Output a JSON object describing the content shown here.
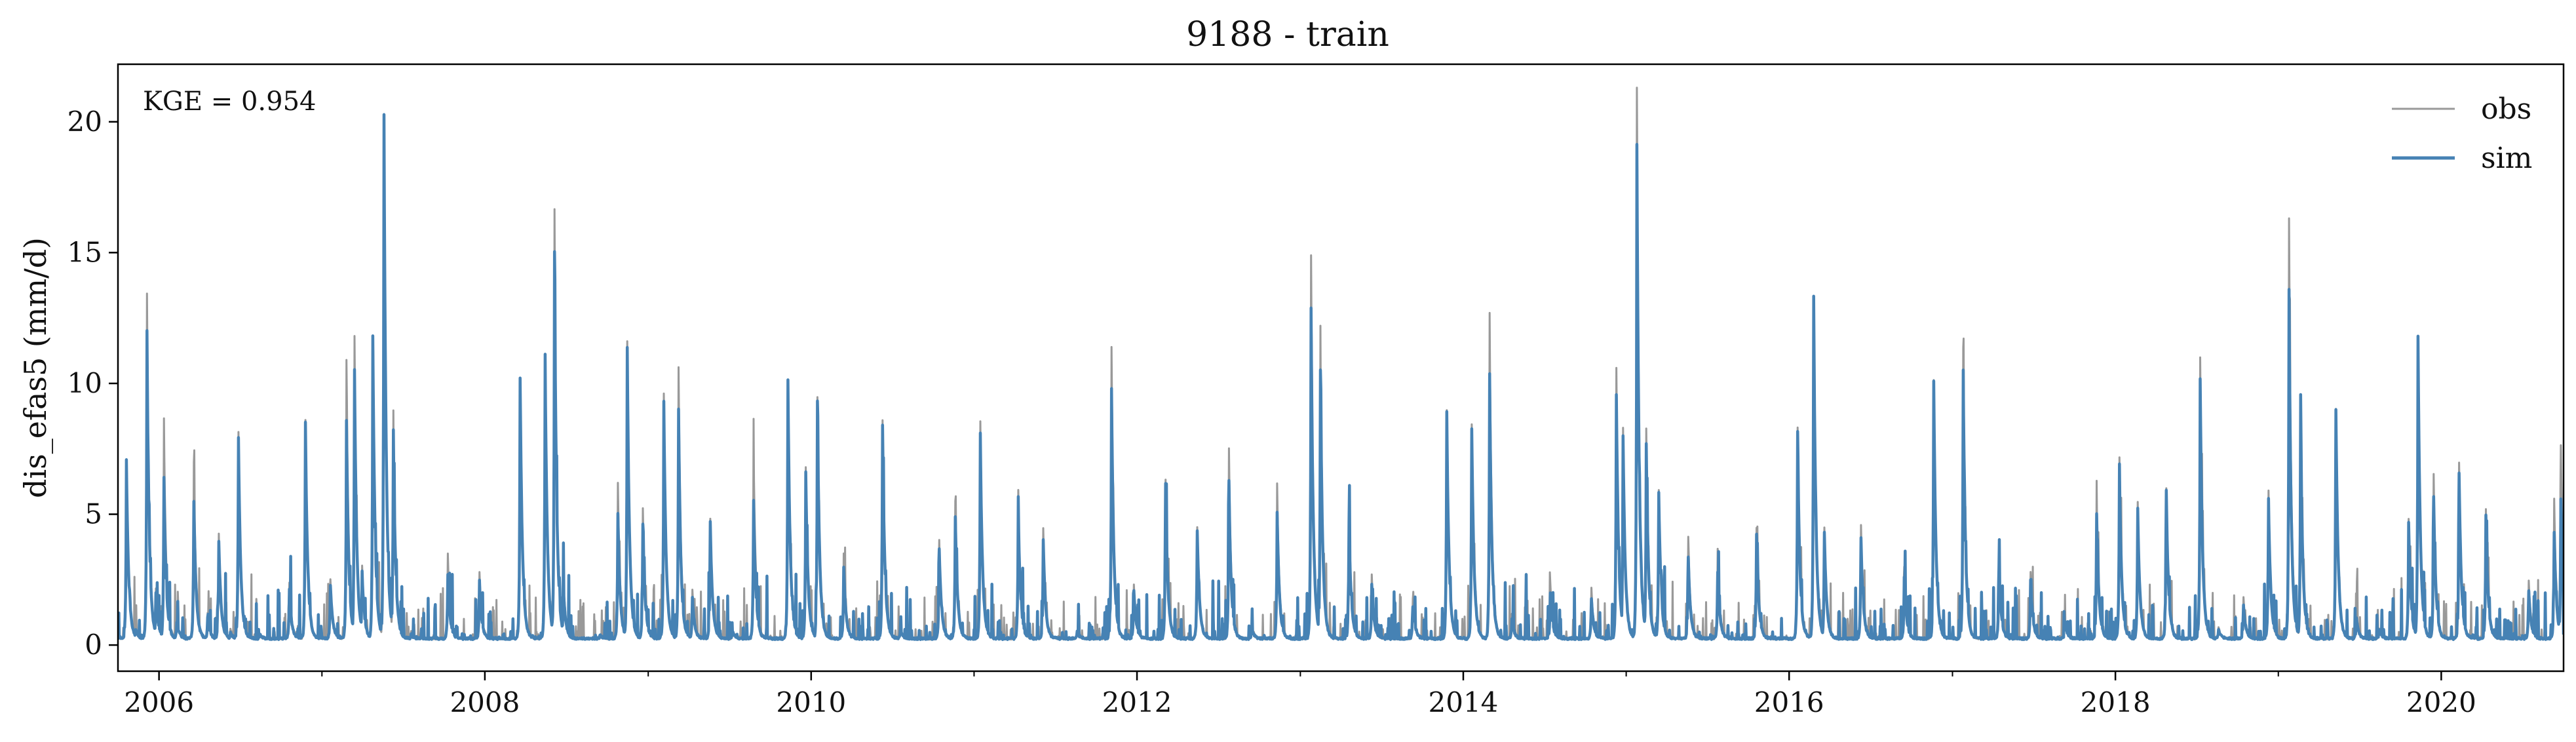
{
  "chart_data": {
    "type": "line",
    "title": "9188 - train",
    "xlabel": "",
    "ylabel": "dis_efas5 (mm/d)",
    "xlim": [
      "2005-10-01",
      "2020-10-01"
    ],
    "ylim": [
      -1,
      22.2
    ],
    "x_ticks": [
      "2006",
      "2008",
      "2010",
      "2012",
      "2014",
      "2016",
      "2018",
      "2020"
    ],
    "y_ticks": [
      "0",
      "5",
      "10",
      "15",
      "20"
    ],
    "grid": false,
    "legend": {
      "position": "top-right"
    },
    "annotation": "KGE = 0.954",
    "colors": {
      "obs": "#999999",
      "sim": "#4682b4"
    },
    "series": [
      {
        "name": "obs",
        "values": [
          [
            "2005-10-01",
            0.3
          ],
          [
            "2005-10-20",
            7.0
          ],
          [
            "2005-11-10",
            0.6
          ],
          [
            "2005-12-05",
            13.4
          ],
          [
            "2005-12-25",
            2.2
          ],
          [
            "2006-01-12",
            8.7
          ],
          [
            "2006-02-10",
            1.0
          ],
          [
            "2006-03-20",
            7.0
          ],
          [
            "2006-04-20",
            1.2
          ],
          [
            "2006-05-15",
            4.2
          ],
          [
            "2006-06-10",
            0.6
          ],
          [
            "2006-06-28",
            8.0
          ],
          [
            "2006-08-15",
            0.4
          ],
          [
            "2006-10-20",
            2.4
          ],
          [
            "2006-11-25",
            8.6
          ],
          [
            "2007-01-20",
            2.5
          ],
          [
            "2007-02-25",
            10.9
          ],
          [
            "2007-03-15",
            11.8
          ],
          [
            "2007-04-01",
            3.0
          ],
          [
            "2007-04-25",
            11.8
          ],
          [
            "2007-05-20",
            20.3
          ],
          [
            "2007-06-10",
            8.3
          ],
          [
            "2007-07-20",
            0.5
          ],
          [
            "2007-10-10",
            3.5
          ],
          [
            "2007-12-20",
            2.8
          ],
          [
            "2008-03-20",
            10.2
          ],
          [
            "2008-05-15",
            11.1
          ],
          [
            "2008-06-05",
            16.7
          ],
          [
            "2008-06-25",
            2.6
          ],
          [
            "2008-09-15",
            0.4
          ],
          [
            "2008-10-25",
            6.2
          ],
          [
            "2008-11-15",
            11.6
          ],
          [
            "2008-12-20",
            5.2
          ],
          [
            "2009-02-05",
            9.6
          ],
          [
            "2009-03-10",
            10.6
          ],
          [
            "2009-04-10",
            2.1
          ],
          [
            "2009-05-20",
            4.8
          ],
          [
            "2009-07-10",
            0.5
          ],
          [
            "2009-08-25",
            7.6
          ],
          [
            "2009-11-10",
            10.1
          ],
          [
            "2009-12-20",
            6.8
          ],
          [
            "2010-01-15",
            9.5
          ],
          [
            "2010-03-15",
            3.5
          ],
          [
            "2010-06-10",
            8.6
          ],
          [
            "2010-07-20",
            0.6
          ],
          [
            "2010-10-15",
            4.0
          ],
          [
            "2010-11-20",
            5.5
          ],
          [
            "2011-01-15",
            7.9
          ],
          [
            "2011-04-10",
            5.4
          ],
          [
            "2011-06-05",
            4.5
          ],
          [
            "2011-08-20",
            0.5
          ],
          [
            "2011-11-05",
            11.4
          ],
          [
            "2011-12-25",
            2.3
          ],
          [
            "2012-03-05",
            6.3
          ],
          [
            "2012-05-15",
            4.5
          ],
          [
            "2012-07-25",
            7.5
          ],
          [
            "2012-09-15",
            0.6
          ],
          [
            "2012-11-10",
            6.2
          ],
          [
            "2013-01-25",
            14.9
          ],
          [
            "2013-02-15",
            10.6
          ],
          [
            "2013-04-20",
            5.5
          ],
          [
            "2013-06-10",
            2.7
          ],
          [
            "2013-09-10",
            1.8
          ],
          [
            "2013-11-25",
            9.0
          ],
          [
            "2014-01-20",
            8.4
          ],
          [
            "2014-03-01",
            12.7
          ],
          [
            "2014-04-20",
            1.2
          ],
          [
            "2014-07-15",
            2.4
          ],
          [
            "2014-10-15",
            2.2
          ],
          [
            "2014-12-10",
            10.6
          ],
          [
            "2014-12-25",
            8.3
          ],
          [
            "2015-01-25",
            21.3
          ],
          [
            "2015-02-15",
            8.2
          ],
          [
            "2015-03-15",
            5.9
          ],
          [
            "2015-05-20",
            4.1
          ],
          [
            "2015-07-25",
            3.3
          ],
          [
            "2015-10-20",
            4.5
          ],
          [
            "2016-01-20",
            8.3
          ],
          [
            "2016-02-25",
            13.3
          ],
          [
            "2016-03-20",
            4.5
          ],
          [
            "2016-06-10",
            4.6
          ],
          [
            "2016-09-15",
            3.0
          ],
          [
            "2016-11-20",
            10.1
          ],
          [
            "2017-01-25",
            11.4
          ],
          [
            "2017-04-15",
            3.3
          ],
          [
            "2017-06-25",
            2.8
          ],
          [
            "2017-09-10",
            1.0
          ],
          [
            "2017-11-20",
            5.5
          ],
          [
            "2018-01-10",
            7.2
          ],
          [
            "2018-02-20",
            5.5
          ],
          [
            "2018-04-25",
            6.0
          ],
          [
            "2018-07-10",
            11.0
          ],
          [
            "2018-08-20",
            0.7
          ],
          [
            "2018-10-15",
            1.8
          ],
          [
            "2018-12-10",
            5.9
          ],
          [
            "2019-01-25",
            16.3
          ],
          [
            "2019-02-20",
            8.0
          ],
          [
            "2019-05-10",
            9.0
          ],
          [
            "2019-06-25",
            1.2
          ],
          [
            "2019-08-15",
            0.6
          ],
          [
            "2019-10-20",
            4.8
          ],
          [
            "2019-11-10",
            11.8
          ],
          [
            "2019-12-15",
            6.5
          ],
          [
            "2020-02-10",
            7.0
          ],
          [
            "2020-04-10",
            5.2
          ],
          [
            "2020-07-15",
            2.5
          ],
          [
            "2020-09-10",
            5.6
          ],
          [
            "2020-09-25",
            7.6
          ],
          [
            "2020-10-01",
            0.5
          ]
        ]
      },
      {
        "name": "sim",
        "values": [
          [
            "2005-10-01",
            0.3
          ],
          [
            "2005-10-20",
            7.0
          ],
          [
            "2005-11-10",
            0.6
          ],
          [
            "2005-12-05",
            12.0
          ],
          [
            "2005-12-25",
            2.0
          ],
          [
            "2006-01-12",
            6.4
          ],
          [
            "2006-02-10",
            0.9
          ],
          [
            "2006-03-20",
            5.5
          ],
          [
            "2006-04-20",
            1.0
          ],
          [
            "2006-05-15",
            4.0
          ],
          [
            "2006-06-10",
            0.5
          ],
          [
            "2006-06-28",
            7.9
          ],
          [
            "2006-08-15",
            0.4
          ],
          [
            "2006-10-20",
            2.1
          ],
          [
            "2006-11-25",
            8.5
          ],
          [
            "2007-01-20",
            2.3
          ],
          [
            "2007-02-25",
            8.6
          ],
          [
            "2007-03-15",
            10.5
          ],
          [
            "2007-04-01",
            2.8
          ],
          [
            "2007-04-25",
            11.8
          ],
          [
            "2007-05-20",
            20.3
          ],
          [
            "2007-06-10",
            8.2
          ],
          [
            "2007-07-20",
            0.4
          ],
          [
            "2007-10-10",
            2.7
          ],
          [
            "2007-12-20",
            2.3
          ],
          [
            "2008-03-20",
            10.2
          ],
          [
            "2008-05-15",
            11.1
          ],
          [
            "2008-06-05",
            15.0
          ],
          [
            "2008-06-25",
            2.2
          ],
          [
            "2008-09-15",
            0.4
          ],
          [
            "2008-10-25",
            5.0
          ],
          [
            "2008-11-15",
            11.4
          ],
          [
            "2008-12-20",
            4.5
          ],
          [
            "2009-02-05",
            9.3
          ],
          [
            "2009-03-10",
            9.0
          ],
          [
            "2009-04-10",
            1.8
          ],
          [
            "2009-05-20",
            4.7
          ],
          [
            "2009-07-10",
            0.5
          ],
          [
            "2009-08-25",
            5.5
          ],
          [
            "2009-11-10",
            10.1
          ],
          [
            "2009-12-20",
            6.6
          ],
          [
            "2010-01-15",
            9.3
          ],
          [
            "2010-03-15",
            3.0
          ],
          [
            "2010-06-10",
            8.4
          ],
          [
            "2010-07-20",
            0.6
          ],
          [
            "2010-10-15",
            3.7
          ],
          [
            "2010-11-20",
            4.9
          ],
          [
            "2011-01-15",
            7.9
          ],
          [
            "2011-04-10",
            5.2
          ],
          [
            "2011-06-05",
            4.0
          ],
          [
            "2011-08-20",
            0.5
          ],
          [
            "2011-11-05",
            9.8
          ],
          [
            "2011-12-25",
            2.1
          ],
          [
            "2012-03-05",
            6.2
          ],
          [
            "2012-05-15",
            4.4
          ],
          [
            "2012-07-25",
            6.3
          ],
          [
            "2012-09-15",
            0.6
          ],
          [
            "2012-11-10",
            5.1
          ],
          [
            "2013-01-25",
            12.9
          ],
          [
            "2013-02-15",
            10.5
          ],
          [
            "2013-04-20",
            4.7
          ],
          [
            "2013-06-10",
            2.3
          ],
          [
            "2013-09-10",
            1.5
          ],
          [
            "2013-11-25",
            8.9
          ],
          [
            "2014-01-20",
            8.3
          ],
          [
            "2014-03-01",
            10.4
          ],
          [
            "2014-04-20",
            1.0
          ],
          [
            "2014-07-15",
            2.0
          ],
          [
            "2014-10-15",
            1.8
          ],
          [
            "2014-12-10",
            9.6
          ],
          [
            "2014-12-25",
            8.0
          ],
          [
            "2015-01-25",
            19.1
          ],
          [
            "2015-02-15",
            7.7
          ],
          [
            "2015-03-15",
            5.8
          ],
          [
            "2015-05-20",
            3.4
          ],
          [
            "2015-07-25",
            2.8
          ],
          [
            "2015-10-20",
            4.2
          ],
          [
            "2016-01-20",
            8.2
          ],
          [
            "2016-02-25",
            13.3
          ],
          [
            "2016-03-20",
            4.3
          ],
          [
            "2016-06-10",
            4.1
          ],
          [
            "2016-09-15",
            2.6
          ],
          [
            "2016-11-20",
            10.1
          ],
          [
            "2017-01-25",
            10.5
          ],
          [
            "2017-04-15",
            3.0
          ],
          [
            "2017-06-25",
            2.5
          ],
          [
            "2017-09-10",
            0.9
          ],
          [
            "2017-11-20",
            5.0
          ],
          [
            "2018-01-10",
            6.9
          ],
          [
            "2018-02-20",
            5.2
          ],
          [
            "2018-04-25",
            5.9
          ],
          [
            "2018-07-10",
            10.2
          ],
          [
            "2018-08-20",
            0.6
          ],
          [
            "2018-10-15",
            1.5
          ],
          [
            "2018-12-10",
            5.6
          ],
          [
            "2019-01-25",
            13.3
          ],
          [
            "2019-02-20",
            8.4
          ],
          [
            "2019-05-10",
            9.0
          ],
          [
            "2019-06-25",
            1.0
          ],
          [
            "2019-08-15",
            0.6
          ],
          [
            "2019-10-20",
            4.7
          ],
          [
            "2019-11-10",
            11.8
          ],
          [
            "2019-12-15",
            5.7
          ],
          [
            "2020-02-10",
            6.6
          ],
          [
            "2020-04-10",
            5.0
          ],
          [
            "2020-07-15",
            2.1
          ],
          [
            "2020-09-10",
            4.3
          ],
          [
            "2020-09-25",
            5.6
          ],
          [
            "2020-10-01",
            0.4
          ]
        ]
      }
    ]
  }
}
